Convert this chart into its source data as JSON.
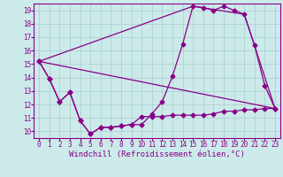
{
  "xlabel": "Windchill (Refroidissement éolien,°C)",
  "bg_color": "#cceaea",
  "line_color": "#880088",
  "grid_color": "#aacccc",
  "series1_x": [
    0,
    1,
    2,
    3,
    4,
    5,
    6,
    7,
    8,
    9,
    10,
    11,
    12,
    13,
    14,
    15,
    16,
    17,
    18,
    19,
    20,
    21,
    22,
    23
  ],
  "series1_y": [
    15.2,
    13.9,
    12.2,
    12.9,
    10.8,
    9.8,
    10.3,
    10.3,
    10.4,
    10.5,
    10.5,
    11.3,
    12.2,
    14.1,
    16.5,
    19.3,
    19.2,
    19.0,
    19.3,
    19.0,
    18.7,
    16.4,
    13.4,
    11.7
  ],
  "series2_x": [
    0,
    1,
    2,
    3,
    4,
    5,
    6,
    7,
    8,
    9,
    10,
    11,
    12,
    13,
    14,
    15,
    16,
    17,
    18,
    19,
    20,
    21,
    22,
    23
  ],
  "series2_y": [
    15.2,
    13.9,
    12.2,
    12.9,
    10.8,
    9.8,
    10.3,
    10.3,
    10.4,
    10.5,
    11.1,
    11.1,
    11.1,
    11.2,
    11.2,
    11.2,
    11.2,
    11.3,
    11.5,
    11.5,
    11.6,
    11.6,
    11.7,
    11.7
  ],
  "series3_x": [
    0,
    23
  ],
  "series3_y": [
    15.2,
    11.7
  ],
  "series4_x": [
    0,
    15,
    20,
    23
  ],
  "series4_y": [
    15.2,
    19.3,
    18.7,
    11.7
  ],
  "ylim": [
    9.5,
    19.5
  ],
  "xlim": [
    -0.5,
    23.5
  ],
  "yticks": [
    10,
    11,
    12,
    13,
    14,
    15,
    16,
    17,
    18,
    19
  ],
  "xticks": [
    0,
    1,
    2,
    3,
    4,
    5,
    6,
    7,
    8,
    9,
    10,
    11,
    12,
    13,
    14,
    15,
    16,
    17,
    18,
    19,
    20,
    21,
    22,
    23
  ],
  "markersize": 2.5,
  "linewidth": 0.9,
  "tick_fontsize": 5.5,
  "xlabel_fontsize": 6.5
}
